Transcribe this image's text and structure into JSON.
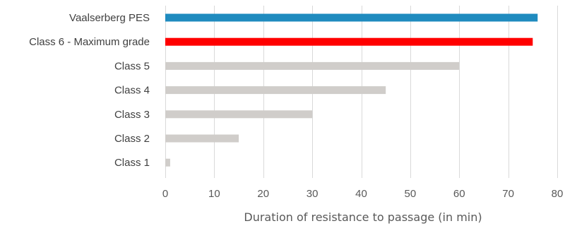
{
  "chart_data": {
    "type": "bar",
    "orientation": "horizontal",
    "categories": [
      "Vaalserberg PES",
      "Class 6 - Maximum grade",
      "Class 5",
      "Class 4",
      "Class 3",
      "Class 2",
      "Class 1"
    ],
    "values": [
      76,
      75,
      60,
      45,
      30,
      15,
      1
    ],
    "bar_colors": [
      "#1f8bbf",
      "#ff0000",
      "#d0cdca",
      "#d0cdca",
      "#d0cdca",
      "#d0cdca",
      "#d0cdca"
    ],
    "xlabel": "Duration of resistance to passage (in min)",
    "xlim": [
      0,
      80
    ],
    "xticks": [
      0,
      10,
      20,
      30,
      40,
      50,
      60,
      70,
      80
    ],
    "grid": "vertical"
  }
}
